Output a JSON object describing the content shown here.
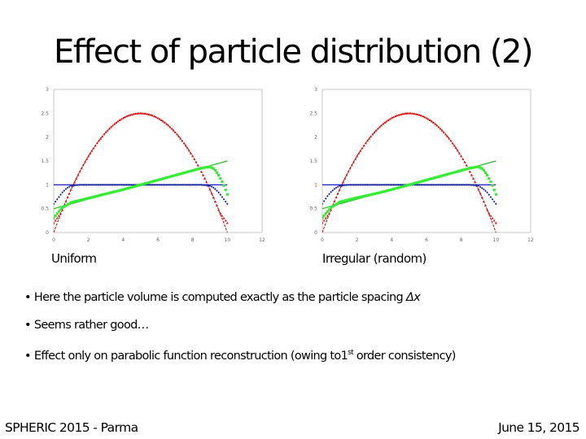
{
  "slide": {
    "title": "Effect of particle distribution (2)",
    "captions": {
      "left": "Uniform",
      "right": "Irregular (random)"
    },
    "bullets": [
      {
        "bullet": "•",
        "text": "Here the particle volume is computed exactly as the particle spacing ",
        "math": "Δx"
      },
      {
        "bullet": "•",
        "text": "Seems rather good…"
      },
      {
        "bullet": "•",
        "text": "Effect only on parabolic function reconstruction (owing to1",
        "sup": "st",
        "text_after": " order consistency)"
      }
    ],
    "footer": {
      "left": "SPHERIC 2015 - Parma",
      "right": "June 15, 2015"
    }
  },
  "chart_data": [
    {
      "type": "scatter",
      "title": "Uniform",
      "xlabel": "",
      "ylabel": "",
      "xlim": [
        0,
        12
      ],
      "ylim": [
        0,
        3
      ],
      "xticks": [
        "0",
        "2",
        "4",
        "6",
        "8",
        "10",
        "12"
      ],
      "yticks": [
        "0",
        "0.5",
        "1",
        "1.5",
        "2",
        "2.5",
        "3"
      ],
      "grid": false,
      "legend": null,
      "series": [
        {
          "name": "parabola exact",
          "kind": "line",
          "color": "#c00000",
          "style": "dashed",
          "formula": "y = 2.5 - 0.1*(x-5)^2",
          "x": [
            0,
            1,
            2,
            3,
            4,
            5,
            6,
            7,
            8,
            9,
            10
          ],
          "y": [
            0,
            0.9,
            1.6,
            2.1,
            2.4,
            2.5,
            2.4,
            2.1,
            1.6,
            0.9,
            0
          ]
        },
        {
          "name": "parabola SPH",
          "kind": "markers",
          "marker": "triangle",
          "color": "#e01010",
          "x": [
            0,
            0.25,
            0.5,
            1,
            2,
            3,
            4,
            5,
            6,
            7,
            8,
            9,
            9.5,
            9.75,
            10
          ],
          "y": [
            0.2,
            0.3,
            0.45,
            0.9,
            1.6,
            2.1,
            2.4,
            2.5,
            2.4,
            2.1,
            1.6,
            0.9,
            0.5,
            0.35,
            0.2
          ]
        },
        {
          "name": "constant exact",
          "kind": "line",
          "color": "#0000c0",
          "x": [
            0,
            10
          ],
          "y": [
            1,
            1
          ]
        },
        {
          "name": "constant SPH",
          "kind": "markers",
          "marker": "diamond",
          "color": "#1020a0",
          "x": [
            0,
            0.25,
            0.5,
            0.75,
            1,
            1.5,
            2,
            5,
            8,
            8.5,
            9,
            9.25,
            9.5,
            9.75,
            10
          ],
          "y": [
            0.6,
            0.72,
            0.84,
            0.93,
            0.98,
            1,
            1,
            1,
            1,
            1,
            0.98,
            0.93,
            0.84,
            0.72,
            0.6
          ]
        },
        {
          "name": "linear exact",
          "kind": "line",
          "color": "#22bb22",
          "x": [
            0,
            10
          ],
          "y": [
            0.5,
            1.5
          ]
        },
        {
          "name": "linear SPH",
          "kind": "markers",
          "marker": "square",
          "color": "#33ee33",
          "x": [
            0,
            0.25,
            0.5,
            1,
            2,
            3,
            4,
            5,
            6,
            7,
            8,
            8.5,
            9,
            9.25,
            9.5,
            9.75,
            10
          ],
          "y": [
            0.3,
            0.42,
            0.52,
            0.63,
            0.72,
            0.81,
            0.9,
            1.0,
            1.1,
            1.2,
            1.3,
            1.35,
            1.38,
            1.33,
            1.2,
            1.03,
            0.8
          ]
        }
      ]
    },
    {
      "type": "scatter",
      "title": "Irregular (random)",
      "xlabel": "",
      "ylabel": "",
      "xlim": [
        0,
        12
      ],
      "ylim": [
        0,
        3
      ],
      "xticks": [
        "0",
        "2",
        "4",
        "6",
        "8",
        "10",
        "12"
      ],
      "yticks": [
        "0",
        "0.5",
        "1",
        "1.5",
        "2",
        "2.5",
        "3"
      ],
      "grid": false,
      "legend": null,
      "series": [
        {
          "name": "parabola exact",
          "kind": "line",
          "color": "#c00000",
          "style": "dashed",
          "formula": "y = 2.5 - 0.1*(x-5)^2",
          "x": [
            0,
            1,
            2,
            3,
            4,
            5,
            6,
            7,
            8,
            9,
            10
          ],
          "y": [
            0,
            0.9,
            1.6,
            2.1,
            2.4,
            2.5,
            2.4,
            2.1,
            1.6,
            0.9,
            0
          ]
        },
        {
          "name": "parabola SPH",
          "kind": "markers",
          "marker": "triangle",
          "color": "#e01010",
          "x": [
            0,
            0.25,
            0.5,
            1,
            2,
            3,
            4,
            5,
            6,
            7,
            8,
            9,
            9.5,
            9.75,
            10
          ],
          "y": [
            0.2,
            0.32,
            0.45,
            0.9,
            1.6,
            2.1,
            2.4,
            2.5,
            2.4,
            2.1,
            1.6,
            0.9,
            0.5,
            0.35,
            0.2
          ]
        },
        {
          "name": "constant exact",
          "kind": "line",
          "color": "#0000c0",
          "x": [
            0,
            10
          ],
          "y": [
            1,
            1
          ]
        },
        {
          "name": "constant SPH",
          "kind": "markers",
          "marker": "diamond",
          "color": "#1020a0",
          "x": [
            0,
            0.25,
            0.5,
            0.75,
            1,
            1.5,
            2,
            5,
            8,
            8.5,
            9,
            9.25,
            9.5,
            9.75,
            10
          ],
          "y": [
            0.6,
            0.74,
            0.85,
            0.93,
            0.98,
            1,
            1,
            1,
            1,
            1,
            0.98,
            0.92,
            0.84,
            0.72,
            0.6
          ]
        },
        {
          "name": "linear exact",
          "kind": "line",
          "color": "#22bb22",
          "x": [
            0,
            10
          ],
          "y": [
            0.5,
            1.5
          ]
        },
        {
          "name": "linear SPH",
          "kind": "markers",
          "marker": "square",
          "color": "#33ee33",
          "x": [
            0,
            0.25,
            0.5,
            1,
            2,
            3,
            4,
            5,
            6,
            7,
            8,
            8.5,
            9,
            9.25,
            9.5,
            9.75,
            10
          ],
          "y": [
            0.3,
            0.42,
            0.52,
            0.64,
            0.73,
            0.81,
            0.9,
            1.0,
            1.1,
            1.2,
            1.3,
            1.35,
            1.38,
            1.33,
            1.2,
            1.03,
            0.8
          ]
        }
      ]
    }
  ]
}
